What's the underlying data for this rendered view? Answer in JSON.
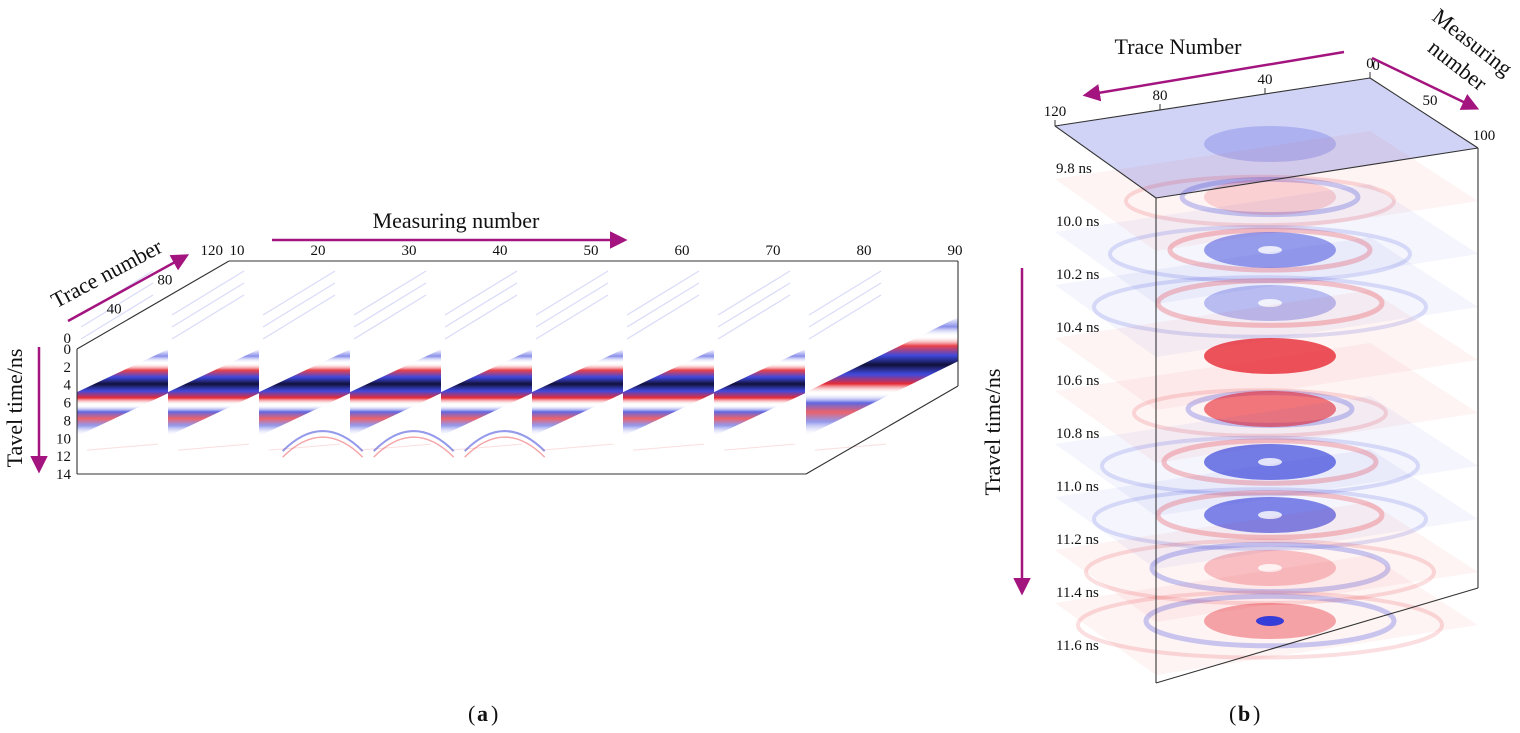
{
  "figure": {
    "panel_a_label": "a",
    "panel_b_label": "b"
  },
  "colors": {
    "arrow": "#a3147f",
    "positive": "#e6202a",
    "negative": "#2b35d8",
    "peak": "#10103a",
    "frame": "#333333"
  },
  "chart_data": [
    {
      "type": "heatmap",
      "panel": "a",
      "title": "",
      "measuring_axis": {
        "label": "Measuring number",
        "ticks": [
          10,
          20,
          30,
          40,
          50,
          60,
          70,
          80,
          90
        ]
      },
      "trace_axis": {
        "label": "Trace number",
        "ticks": [
          0,
          40,
          80,
          120
        ],
        "range": [
          0,
          120
        ]
      },
      "time_axis": {
        "label": "Tavel time/ns",
        "ticks": [
          0,
          2,
          4,
          6,
          8,
          10,
          12,
          14
        ],
        "range": [
          0,
          14
        ]
      },
      "slices": [
        10,
        20,
        30,
        40,
        50,
        60,
        70,
        80,
        90
      ],
      "reflection_band": {
        "description_values": "direct wave: blue/red/dark-peak/red/blue bands",
        "time_at_trace_0_ns": 6.8,
        "time_at_trace_120_ns": 2.0
      },
      "hyperbola_slices": [
        30,
        40,
        50
      ]
    },
    {
      "type": "heatmap",
      "panel": "b",
      "title": "",
      "trace_axis": {
        "label": "Trace Number",
        "ticks": [
          0,
          40,
          80,
          120
        ],
        "range": [
          0,
          120
        ]
      },
      "measuring_axis": {
        "label": "Measuring number",
        "label_lines": [
          "Measuring",
          "number"
        ],
        "ticks": [
          0,
          50,
          100
        ],
        "range": [
          0,
          100
        ]
      },
      "time_axis": {
        "label": "Travel time/ns"
      },
      "time_slices": [
        {
          "label": "9.8 ns",
          "time": 9.8,
          "polarity": "negative",
          "intensity": 0.25,
          "ring": 0
        },
        {
          "label": "10.0 ns",
          "time": 10.0,
          "polarity": "positive",
          "intensity": 0.2,
          "ring": 0.3
        },
        {
          "label": "10.2 ns",
          "time": 10.2,
          "polarity": "negative",
          "intensity": 0.55,
          "ring": 0.5
        },
        {
          "label": "10.4 ns",
          "time": 10.4,
          "polarity": "negative",
          "intensity": 0.35,
          "ring": 0.7
        },
        {
          "label": "10.6 ns",
          "time": 10.6,
          "polarity": "positive",
          "intensity": 0.9,
          "ring": 0
        },
        {
          "label": "10.8 ns",
          "time": 10.8,
          "polarity": "positive",
          "intensity": 0.7,
          "ring": 0.2
        },
        {
          "label": "11.0 ns",
          "time": 11.0,
          "polarity": "negative",
          "intensity": 0.75,
          "ring": 0.6
        },
        {
          "label": "11.2 ns",
          "time": 11.2,
          "polarity": "negative",
          "intensity": 0.7,
          "ring": 0.7
        },
        {
          "label": "11.4 ns",
          "time": 11.4,
          "polarity": "positive",
          "intensity": 0.3,
          "ring": 0.8
        },
        {
          "label": "11.6 ns",
          "time": 11.6,
          "polarity": "positive",
          "intensity": 0.45,
          "ring": 0.9
        }
      ]
    }
  ]
}
